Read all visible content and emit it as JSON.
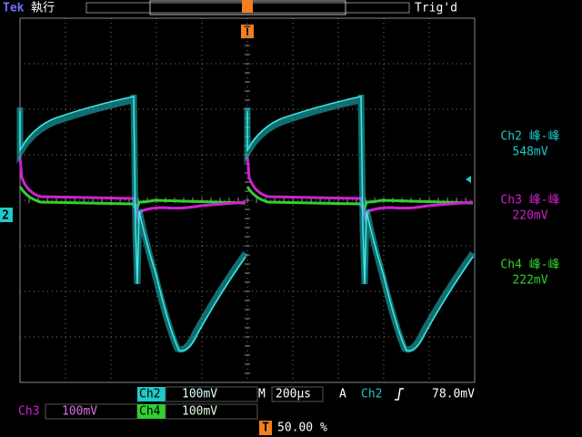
{
  "header": {
    "brand": "Tek",
    "status": "執行",
    "trigger_status": "Trig'd"
  },
  "trigger_marker": "T",
  "channel_marker": "2",
  "measurements": [
    {
      "label": "Ch2 峰-峰",
      "value": "548mV"
    },
    {
      "label": "Ch3 峰-峰",
      "value": "220mV"
    },
    {
      "label": "Ch4 峰-峰",
      "value": "222mV"
    }
  ],
  "footer": {
    "ch2": {
      "name": "Ch2",
      "scale": "100mV"
    },
    "timebase_label": "M",
    "timebase": "200µs",
    "trigger_mode": "A",
    "trigger_source": "Ch2",
    "trigger_level": "78.0mV",
    "ch3": {
      "name": "Ch3",
      "scale": "100mV"
    },
    "ch4": {
      "name": "Ch4",
      "scale": "100mV"
    },
    "trigger_position_label": "T",
    "trigger_position": "50.00 %"
  }
}
